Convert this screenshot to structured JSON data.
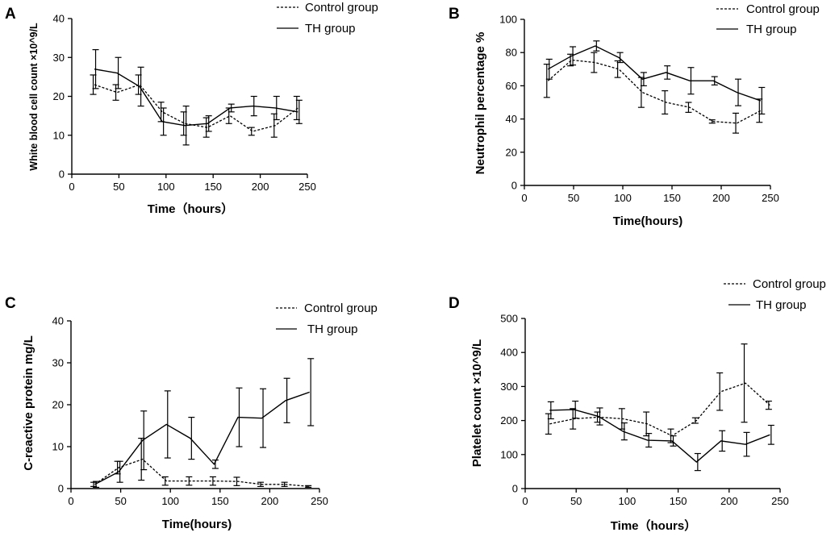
{
  "legend": {
    "control": "Control group",
    "th": "TH group"
  },
  "chart_data": [
    {
      "type": "line",
      "panel_label": "A",
      "xlabel": "Time（hours）",
      "ylabel": "White blood cell count ×10^9/L",
      "xlim": [
        0,
        250
      ],
      "ylim": [
        0,
        40
      ],
      "xticks": [
        0,
        50,
        100,
        150,
        200,
        250
      ],
      "yticks": [
        0,
        10,
        20,
        30,
        40
      ],
      "x": [
        24,
        48,
        72,
        96,
        120,
        144,
        168,
        192,
        216,
        240
      ],
      "series": [
        {
          "name": "Control group",
          "style": "dashed",
          "values": [
            23,
            21,
            23,
            16,
            13,
            12,
            15,
            11,
            12.5,
            17
          ],
          "err": [
            2.5,
            2,
            2.5,
            2.5,
            3,
            2.5,
            2,
            1,
            3,
            3
          ]
        },
        {
          "name": "TH group",
          "style": "solid",
          "values": [
            27,
            26,
            22.5,
            13.5,
            12.5,
            13,
            17,
            17.5,
            17,
            16
          ],
          "err": [
            5,
            4,
            5,
            3.5,
            5,
            2,
            1,
            2.5,
            3,
            3
          ]
        }
      ]
    },
    {
      "type": "line",
      "panel_label": "B",
      "xlabel": "Time(hours)",
      "ylabel": "Neutrophil percentage %",
      "xlim": [
        0,
        250
      ],
      "ylim": [
        0,
        100
      ],
      "xticks": [
        0,
        50,
        100,
        150,
        200,
        250
      ],
      "yticks": [
        0,
        20,
        40,
        60,
        80,
        100
      ],
      "x": [
        24,
        48,
        72,
        96,
        120,
        144,
        168,
        192,
        216,
        240
      ],
      "series": [
        {
          "name": "Control group",
          "style": "dashed",
          "values": [
            63,
            75.5,
            74,
            70,
            56,
            50,
            47,
            38.5,
            37.5,
            45
          ],
          "err": [
            10,
            3.5,
            6,
            5,
            9,
            7,
            3,
            1,
            6,
            7
          ]
        },
        {
          "name": "TH group",
          "style": "solid",
          "values": [
            70,
            78,
            84,
            77,
            64,
            68,
            63,
            63,
            56,
            51
          ],
          "err": [
            6,
            5.5,
            3,
            3,
            4,
            4,
            8,
            2.5,
            8,
            8
          ]
        }
      ]
    },
    {
      "type": "line",
      "panel_label": "C",
      "xlabel": "Time(hours)",
      "ylabel": "C-reactive protein  mg/L",
      "xlim": [
        0,
        250
      ],
      "ylim": [
        0,
        40
      ],
      "xticks": [
        0,
        50,
        100,
        150,
        200,
        250
      ],
      "yticks": [
        0,
        10,
        20,
        30,
        40
      ],
      "x": [
        24,
        48,
        72,
        96,
        120,
        144,
        168,
        192,
        216,
        240
      ],
      "series": [
        {
          "name": "Control group",
          "style": "dashed",
          "values": [
            1,
            5,
            7,
            1.8,
            1.8,
            1.8,
            1.7,
            1,
            1,
            0.5
          ],
          "err": [
            0.5,
            1.5,
            5,
            1,
            1,
            1,
            1,
            0.5,
            0.5,
            0.2
          ]
        },
        {
          "name": "TH group",
          "style": "solid",
          "values": [
            1,
            4,
            11.5,
            15.3,
            12,
            5.8,
            17,
            16.8,
            21,
            23
          ],
          "err": [
            0.7,
            2.5,
            7,
            8,
            5,
            1,
            7,
            7,
            5.3,
            8
          ]
        }
      ]
    },
    {
      "type": "line",
      "panel_label": "D",
      "xlabel": "Time（hours）",
      "ylabel": "Platelet count ×10^9/L",
      "xlim": [
        0,
        250
      ],
      "ylim": [
        0,
        500
      ],
      "xticks": [
        0,
        50,
        100,
        150,
        200,
        250
      ],
      "yticks": [
        0,
        100,
        200,
        300,
        400,
        500
      ],
      "x": [
        24,
        48,
        72,
        96,
        120,
        144,
        168,
        192,
        216,
        240
      ],
      "series": [
        {
          "name": "Control group",
          "style": "dashed",
          "values": [
            190,
            205,
            210,
            205,
            190,
            155,
            200,
            285,
            310,
            245
          ],
          "err": [
            30,
            30,
            15,
            30,
            35,
            20,
            8,
            55,
            115,
            12
          ]
        },
        {
          "name": "TH group",
          "style": "solid",
          "values": [
            230,
            232,
            212,
            168,
            142,
            140,
            78,
            140,
            130,
            158
          ],
          "err": [
            25,
            25,
            25,
            25,
            20,
            15,
            25,
            30,
            35,
            28
          ]
        }
      ]
    }
  ]
}
